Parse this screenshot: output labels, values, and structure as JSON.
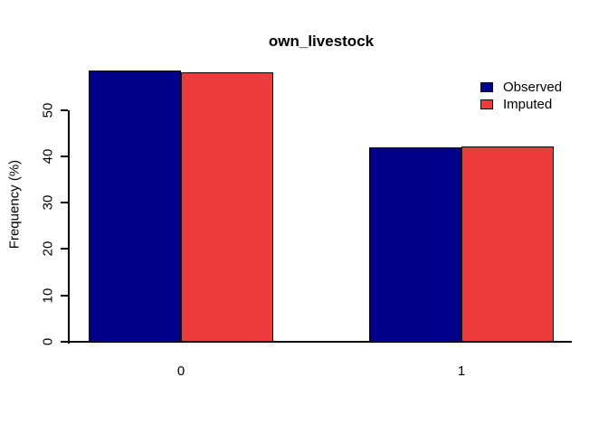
{
  "chart_data": {
    "type": "bar",
    "title": "own_livestock",
    "categories": [
      "0",
      "1"
    ],
    "series": [
      {
        "name": "Observed",
        "color": "#00008B",
        "values": [
          58.5,
          41.9
        ]
      },
      {
        "name": "Imputed",
        "color": "#EE3B3B",
        "values": [
          58.2,
          42.2
        ]
      }
    ],
    "xlabel": "",
    "ylabel": "Frequency (%)",
    "yticks": [
      0,
      10,
      20,
      30,
      40,
      50
    ],
    "ylim": [
      0,
      59.7
    ],
    "grid": false,
    "legend_position": "top-right",
    "background_color": "#FFFFFF",
    "axis_color": "#000000",
    "bar_border_color": "#000000"
  }
}
